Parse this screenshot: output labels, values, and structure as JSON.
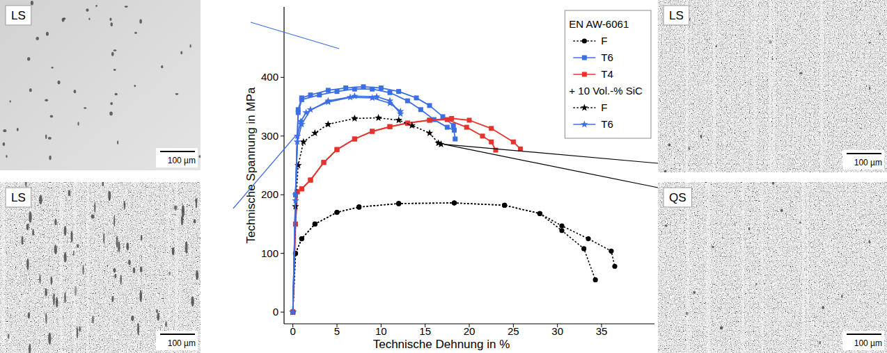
{
  "chart_data": {
    "type": "line",
    "x_label": "Technische Dehnung in %",
    "y_label": "Technische Spannung in MPa",
    "xlim": [
      -1,
      41
    ],
    "ylim": [
      -20,
      520
    ],
    "xticks": [
      0,
      5,
      10,
      15,
      20,
      25,
      30,
      35
    ],
    "yticks": [
      0,
      100,
      200,
      300,
      400
    ],
    "legend": "upper right",
    "legend_title": "EN AW-6061",
    "legend_subtitle": "+ 10 Vol.-% SiC",
    "series": [
      {
        "name": "F",
        "color": "#000000",
        "marker": "circle",
        "line_style": "dotted",
        "x": [
          0,
          0.3,
          1,
          2.5,
          5,
          7.5,
          12,
          18.3,
          24,
          28,
          30.5,
          33,
          34.3
        ],
        "values": [
          0,
          100,
          125,
          150,
          170,
          179,
          185,
          186,
          182,
          168,
          139,
          108,
          55
        ]
      },
      {
        "name": "F",
        "color": "#000000",
        "marker": "circle",
        "line_style": "dotted",
        "x": [
          0,
          0.3,
          1,
          2.5,
          5,
          7.5,
          12,
          18.3,
          24,
          28,
          30.5,
          33.5,
          36.1,
          36.5
        ],
        "values": [
          0,
          100,
          125,
          150,
          170,
          179,
          185,
          186,
          182,
          168,
          147,
          125,
          104,
          78
        ]
      },
      {
        "name": "T6",
        "color": "#3c6fe6",
        "marker": "square",
        "line_style": "solid",
        "x": [
          0,
          0.3,
          0.6,
          1,
          2,
          4,
          6,
          8,
          10,
          12,
          14,
          15.5,
          17,
          18.2,
          18.4
        ],
        "values": [
          0,
          200,
          345,
          365,
          370,
          378,
          382,
          384,
          382,
          376,
          365,
          352,
          333,
          318,
          295
        ]
      },
      {
        "name": "T6",
        "color": "#3c6fe6",
        "marker": "square",
        "line_style": "solid",
        "x": [
          0,
          0.3,
          0.6,
          1,
          3,
          5,
          7,
          9,
          11,
          13,
          14.5,
          16,
          17.5,
          18.3
        ],
        "values": [
          0,
          200,
          340,
          362,
          370,
          376,
          380,
          380,
          374,
          360,
          345,
          328,
          315,
          310
        ]
      },
      {
        "name": "T4",
        "color": "#e8322e",
        "marker": "square",
        "line_style": "solid",
        "x": [
          0,
          0.3,
          0.5,
          1,
          2,
          3.5,
          5,
          7,
          9,
          11,
          13,
          15.5,
          17.5,
          19.7,
          21.5,
          22.5,
          23
        ],
        "values": [
          0,
          150,
          205,
          210,
          225,
          255,
          277,
          295,
          308,
          316,
          322,
          327,
          328,
          315,
          300,
          290,
          276
        ]
      },
      {
        "name": "T4",
        "color": "#e8322e",
        "marker": "square",
        "line_style": "solid",
        "x": [
          0,
          0.3,
          0.5,
          1,
          2,
          3.5,
          5,
          7,
          9,
          11,
          13,
          15.5,
          18,
          20,
          22.5,
          25,
          25.8
        ],
        "values": [
          0,
          150,
          205,
          210,
          225,
          255,
          277,
          295,
          308,
          316,
          322,
          327,
          330,
          327,
          313,
          290,
          278
        ]
      },
      {
        "name": "F",
        "color": "#000000",
        "marker": "star",
        "line_style": "dotted",
        "x": [
          0,
          0.3,
          0.6,
          1.2,
          2.5,
          4,
          7,
          9.7,
          12,
          13.5,
          15.5,
          16.5,
          16.8
        ],
        "values": [
          0,
          180,
          250,
          290,
          305,
          320,
          330,
          331,
          327,
          318,
          305,
          288,
          286
        ]
      },
      {
        "name": "T6",
        "color": "#3c6fe6",
        "marker": "star",
        "line_style": "solid",
        "x": [
          0,
          0.3,
          0.5,
          0.9,
          1.5,
          4,
          7,
          9.5,
          11,
          12.2
        ],
        "values": [
          0,
          200,
          300,
          325,
          340,
          360,
          368,
          367,
          360,
          338
        ]
      },
      {
        "name": "T6",
        "color": "#3c6fe6",
        "marker": "star",
        "line_style": "solid",
        "x": [
          0,
          0.3,
          0.5,
          1,
          2,
          4,
          6.5,
          9,
          11,
          12.2
        ],
        "values": [
          0,
          190,
          290,
          320,
          345,
          358,
          366,
          365,
          356,
          342
        ]
      }
    ]
  },
  "micrographs": [
    {
      "label": "LS",
      "scale_bar": "100 µm"
    },
    {
      "label": "LS",
      "scale_bar": "100 µm"
    },
    {
      "label": "LS",
      "scale_bar": "100 µm"
    },
    {
      "label": "QS",
      "scale_bar": "100 µm"
    }
  ]
}
